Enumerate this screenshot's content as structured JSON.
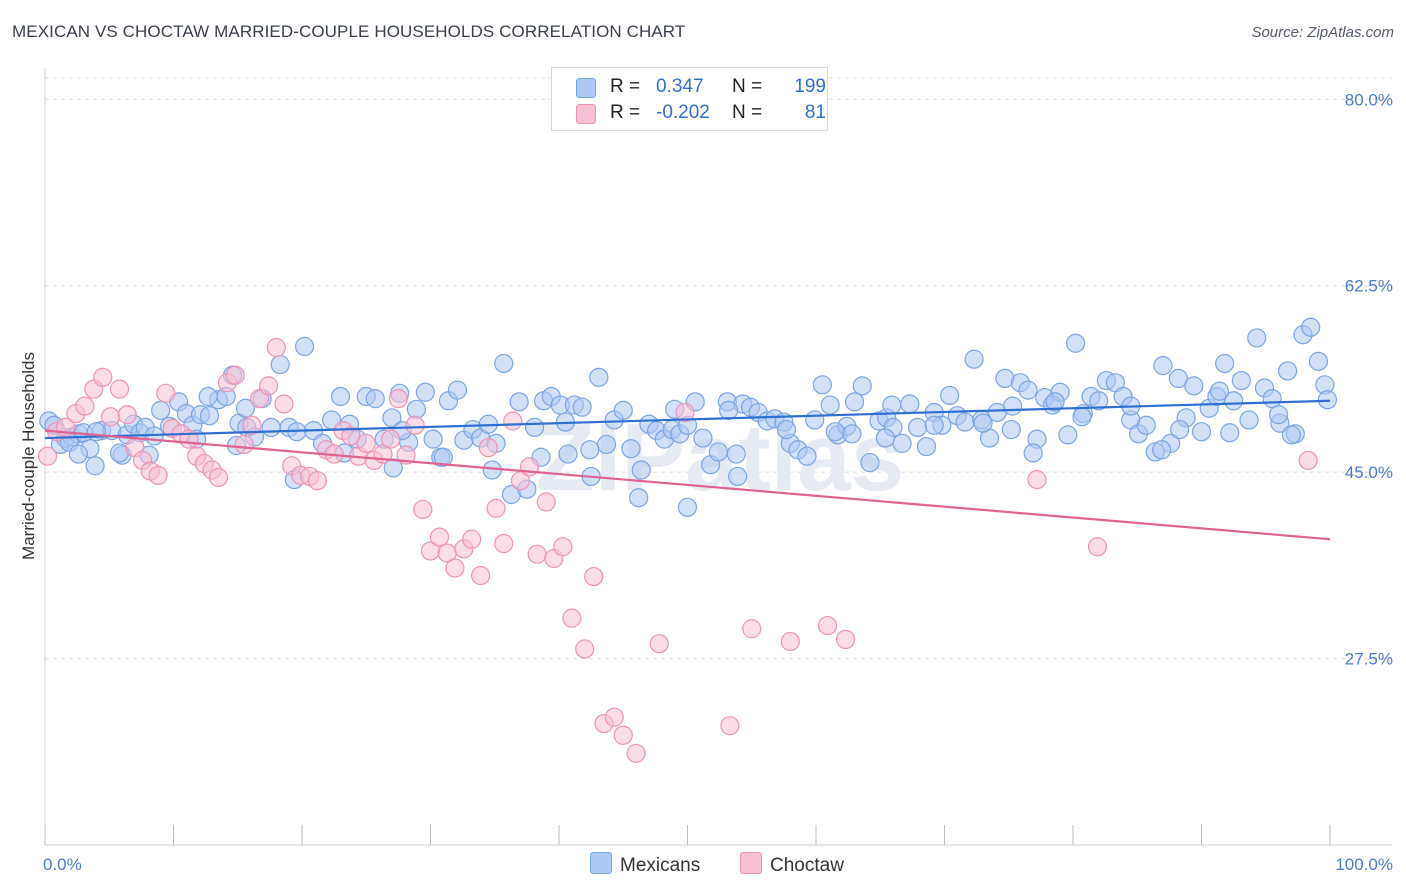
{
  "title": "MEXICAN VS CHOCTAW MARRIED-COUPLE HOUSEHOLDS CORRELATION CHART",
  "source": "Source: ZipAtlas.com",
  "watermark": "ZIPatlas",
  "legend": [
    {
      "r_label": "R =",
      "r_value": "0.347",
      "n_label": "N =",
      "n_value": "199",
      "fill": "#adc8f2",
      "stroke": "#7aa5e3"
    },
    {
      "r_label": "R =",
      "r_value": "-0.202",
      "n_label": "N =",
      "n_value": "81",
      "fill": "#f7bfd3",
      "stroke": "#ee93b4"
    }
  ],
  "bottom_legend": [
    {
      "label": "Mexicans",
      "fill": "#adc8f2",
      "stroke": "#7aa5e3"
    },
    {
      "label": "Choctaw",
      "fill": "#f7bfd3",
      "stroke": "#ee93b4"
    }
  ],
  "chart_data": {
    "type": "scatter",
    "ylabel": "Married-couple Households",
    "xlim": [
      0,
      100
    ],
    "ylim": [
      10,
      82
    ],
    "y_ticks": [
      {
        "value": 80,
        "label": "80.0%"
      },
      {
        "value": 62.5,
        "label": "62.5%"
      },
      {
        "value": 45,
        "label": "45.0%"
      },
      {
        "value": 27.5,
        "label": "27.5%"
      }
    ],
    "x_tick_labels": [
      {
        "value": 0,
        "label": "0.0%"
      },
      {
        "value": 100,
        "label": "100.0%"
      }
    ],
    "series": [
      {
        "name": "Mexicans",
        "color": "#adc8f2",
        "stroke": "#7aa5e3",
        "trend": {
          "x0": 0,
          "y0": 48.2,
          "x1": 100,
          "y1": 51.7,
          "color": "#2f6fd1"
        },
        "points": [
          [
            0.3,
            49.8
          ],
          [
            0.7,
            49.4
          ],
          [
            1.2,
            47.6
          ],
          [
            1.6,
            48.2
          ],
          [
            2.1,
            48.3
          ],
          [
            2.6,
            48.6
          ],
          [
            3.0,
            48.7
          ],
          [
            3.5,
            47.2
          ],
          [
            3.9,
            45.6
          ],
          [
            4.4,
            48.9
          ],
          [
            5.2,
            48.9
          ],
          [
            6.0,
            46.6
          ],
          [
            6.4,
            48.5
          ],
          [
            6.9,
            49.5
          ],
          [
            7.4,
            48.7
          ],
          [
            7.8,
            49.2
          ],
          [
            8.5,
            48.4
          ],
          [
            9.0,
            50.8
          ],
          [
            9.7,
            49.3
          ],
          [
            10.4,
            51.6
          ],
          [
            11.0,
            50.5
          ],
          [
            11.5,
            49.4
          ],
          [
            12.1,
            50.4
          ],
          [
            12.8,
            50.3
          ],
          [
            13.5,
            51.8
          ],
          [
            14.1,
            52.1
          ],
          [
            14.6,
            54.1
          ],
          [
            15.1,
            49.6
          ],
          [
            15.7,
            49.2
          ],
          [
            16.3,
            48.3
          ],
          [
            16.9,
            51.9
          ],
          [
            17.6,
            49.2
          ],
          [
            18.3,
            55.1
          ],
          [
            19.0,
            49.2
          ],
          [
            19.6,
            48.8
          ],
          [
            20.2,
            56.8
          ],
          [
            20.9,
            48.9
          ],
          [
            21.6,
            47.7
          ],
          [
            22.3,
            49.9
          ],
          [
            23.0,
            52.1
          ],
          [
            23.7,
            49.5
          ],
          [
            24.3,
            48.1
          ],
          [
            25.0,
            52.1
          ],
          [
            25.7,
            51.9
          ],
          [
            26.4,
            48.1
          ],
          [
            27.0,
            50.1
          ],
          [
            27.6,
            52.4
          ],
          [
            28.3,
            47.8
          ],
          [
            28.9,
            50.9
          ],
          [
            29.6,
            52.5
          ],
          [
            30.2,
            48.1
          ],
          [
            30.8,
            46.4
          ],
          [
            31.4,
            51.7
          ],
          [
            32.1,
            52.7
          ],
          [
            32.6,
            48.0
          ],
          [
            33.3,
            49.0
          ],
          [
            33.9,
            48.2
          ],
          [
            34.5,
            49.5
          ],
          [
            35.1,
            47.7
          ],
          [
            35.7,
            55.2
          ],
          [
            36.3,
            42.9
          ],
          [
            36.9,
            51.6
          ],
          [
            37.5,
            43.4
          ],
          [
            38.1,
            49.2
          ],
          [
            38.8,
            51.7
          ],
          [
            39.4,
            52.1
          ],
          [
            40.1,
            51.3
          ],
          [
            40.7,
            46.7
          ],
          [
            41.2,
            51.3
          ],
          [
            41.8,
            51.1
          ],
          [
            42.5,
            44.6
          ],
          [
            43.1,
            53.9
          ],
          [
            43.7,
            47.6
          ],
          [
            44.3,
            49.9
          ],
          [
            45.0,
            50.8
          ],
          [
            45.6,
            47.2
          ],
          [
            46.4,
            45.2
          ],
          [
            47.0,
            49.5
          ],
          [
            47.6,
            48.9
          ],
          [
            48.2,
            48.1
          ],
          [
            48.8,
            49.0
          ],
          [
            49.4,
            48.6
          ],
          [
            50.0,
            49.4
          ],
          [
            50.6,
            51.6
          ],
          [
            51.2,
            48.2
          ],
          [
            51.8,
            45.7
          ],
          [
            52.4,
            46.9
          ],
          [
            53.1,
            51.6
          ],
          [
            53.8,
            46.7
          ],
          [
            54.3,
            51.4
          ],
          [
            54.9,
            51.1
          ],
          [
            55.5,
            50.6
          ],
          [
            56.2,
            49.8
          ],
          [
            56.8,
            50.0
          ],
          [
            57.5,
            49.7
          ],
          [
            58.0,
            47.7
          ],
          [
            58.6,
            47.1
          ],
          [
            59.3,
            46.5
          ],
          [
            59.9,
            49.9
          ],
          [
            60.5,
            53.2
          ],
          [
            61.1,
            51.3
          ],
          [
            61.7,
            48.5
          ],
          [
            62.4,
            49.3
          ],
          [
            63.0,
            51.6
          ],
          [
            63.6,
            53.1
          ],
          [
            64.2,
            45.9
          ],
          [
            64.9,
            49.8
          ],
          [
            65.5,
            50.1
          ],
          [
            66.0,
            49.2
          ],
          [
            66.7,
            47.7
          ],
          [
            67.3,
            51.4
          ],
          [
            67.9,
            49.2
          ],
          [
            68.6,
            47.4
          ],
          [
            69.2,
            50.6
          ],
          [
            69.8,
            49.4
          ],
          [
            70.4,
            52.2
          ],
          [
            71.0,
            50.3
          ],
          [
            71.6,
            49.7
          ],
          [
            72.3,
            55.6
          ],
          [
            72.9,
            49.9
          ],
          [
            73.5,
            48.2
          ],
          [
            74.1,
            50.6
          ],
          [
            74.7,
            53.8
          ],
          [
            75.3,
            51.2
          ],
          [
            75.9,
            53.4
          ],
          [
            76.5,
            52.7
          ],
          [
            77.2,
            48.1
          ],
          [
            77.8,
            52.0
          ],
          [
            78.4,
            51.3
          ],
          [
            79.0,
            52.5
          ],
          [
            79.6,
            48.5
          ],
          [
            80.2,
            57.1
          ],
          [
            80.8,
            50.5
          ],
          [
            81.4,
            52.1
          ],
          [
            82.0,
            51.7
          ],
          [
            82.6,
            53.6
          ],
          [
            83.3,
            53.4
          ],
          [
            83.9,
            52.1
          ],
          [
            84.5,
            49.9
          ],
          [
            85.1,
            48.6
          ],
          [
            85.7,
            49.4
          ],
          [
            86.4,
            46.9
          ],
          [
            87.0,
            55.0
          ],
          [
            87.6,
            47.7
          ],
          [
            88.2,
            53.8
          ],
          [
            88.8,
            50.1
          ],
          [
            89.4,
            53.1
          ],
          [
            90.0,
            48.8
          ],
          [
            90.6,
            51.0
          ],
          [
            91.2,
            52.1
          ],
          [
            91.8,
            55.2
          ],
          [
            92.5,
            51.7
          ],
          [
            93.1,
            53.6
          ],
          [
            93.7,
            49.9
          ],
          [
            94.3,
            57.6
          ],
          [
            94.9,
            52.9
          ],
          [
            95.5,
            51.9
          ],
          [
            96.1,
            49.6
          ],
          [
            96.7,
            54.5
          ],
          [
            97.3,
            48.6
          ],
          [
            97.9,
            57.9
          ],
          [
            98.5,
            58.6
          ],
          [
            99.1,
            55.4
          ],
          [
            99.6,
            53.2
          ],
          [
            1.9,
            47.8
          ],
          [
            4.0,
            48.8
          ],
          [
            5.8,
            46.8
          ],
          [
            8.1,
            46.6
          ],
          [
            11.8,
            48.1
          ],
          [
            15.6,
            51.0
          ],
          [
            19.4,
            44.3
          ],
          [
            23.3,
            46.8
          ],
          [
            27.1,
            45.4
          ],
          [
            31.0,
            46.4
          ],
          [
            34.8,
            45.2
          ],
          [
            38.6,
            46.4
          ],
          [
            42.4,
            47.1
          ],
          [
            46.2,
            42.6
          ],
          [
            50.0,
            41.7
          ],
          [
            53.9,
            44.6
          ],
          [
            57.7,
            49.0
          ],
          [
            61.5,
            48.8
          ],
          [
            65.4,
            48.2
          ],
          [
            69.2,
            49.4
          ],
          [
            73.0,
            49.6
          ],
          [
            76.9,
            46.8
          ],
          [
            80.7,
            50.2
          ],
          [
            84.5,
            51.2
          ],
          [
            88.3,
            49.0
          ],
          [
            92.2,
            48.7
          ],
          [
            96.0,
            50.4
          ],
          [
            99.8,
            51.8
          ],
          [
            2.6,
            46.7
          ],
          [
            14.9,
            47.5
          ],
          [
            27.8,
            48.9
          ],
          [
            40.5,
            49.7
          ],
          [
            53.2,
            50.8
          ],
          [
            65.9,
            51.3
          ],
          [
            78.6,
            51.6
          ],
          [
            91.4,
            52.6
          ],
          [
            12.7,
            52.1
          ],
          [
            49.0,
            50.9
          ],
          [
            62.8,
            48.6
          ],
          [
            75.2,
            49.0
          ],
          [
            86.9,
            47.1
          ],
          [
            97.0,
            48.5
          ]
        ]
      },
      {
        "name": "Choctaw",
        "color": "#f7bfd3",
        "stroke": "#ee93b4",
        "trend": {
          "x0": 0,
          "y0": 48.9,
          "x1": 100,
          "y1": 38.7
        },
        "points": [
          [
            0.2,
            46.5
          ],
          [
            0.9,
            48.8
          ],
          [
            1.6,
            49.2
          ],
          [
            2.4,
            50.5
          ],
          [
            3.1,
            51.2
          ],
          [
            3.8,
            52.8
          ],
          [
            4.5,
            53.9
          ],
          [
            5.1,
            50.2
          ],
          [
            5.8,
            52.8
          ],
          [
            6.4,
            50.4
          ],
          [
            7.0,
            47.3
          ],
          [
            7.6,
            46.1
          ],
          [
            8.2,
            45.1
          ],
          [
            8.8,
            44.7
          ],
          [
            9.4,
            52.4
          ],
          [
            9.9,
            49.1
          ],
          [
            10.6,
            48.6
          ],
          [
            11.2,
            48.1
          ],
          [
            11.8,
            46.5
          ],
          [
            12.4,
            45.8
          ],
          [
            13.0,
            45.2
          ],
          [
            13.5,
            44.5
          ],
          [
            14.2,
            53.4
          ],
          [
            14.8,
            54.1
          ],
          [
            15.5,
            47.6
          ],
          [
            16.1,
            49.4
          ],
          [
            16.7,
            51.9
          ],
          [
            17.4,
            53.1
          ],
          [
            18.0,
            56.7
          ],
          [
            18.6,
            51.4
          ],
          [
            19.2,
            45.6
          ],
          [
            19.9,
            44.7
          ],
          [
            20.6,
            44.6
          ],
          [
            21.2,
            44.2
          ],
          [
            21.9,
            47.1
          ],
          [
            22.5,
            46.7
          ],
          [
            23.2,
            48.9
          ],
          [
            23.8,
            48.4
          ],
          [
            24.4,
            46.5
          ],
          [
            25.0,
            47.7
          ],
          [
            25.6,
            46.1
          ],
          [
            26.3,
            46.7
          ],
          [
            26.9,
            48.1
          ],
          [
            27.5,
            51.9
          ],
          [
            28.1,
            46.6
          ],
          [
            28.8,
            49.4
          ],
          [
            29.4,
            41.5
          ],
          [
            30.0,
            37.6
          ],
          [
            30.7,
            38.9
          ],
          [
            31.3,
            37.4
          ],
          [
            31.9,
            36.0
          ],
          [
            32.6,
            37.8
          ],
          [
            33.2,
            38.7
          ],
          [
            33.9,
            35.3
          ],
          [
            34.5,
            47.3
          ],
          [
            35.1,
            41.6
          ],
          [
            35.7,
            38.3
          ],
          [
            36.4,
            49.8
          ],
          [
            37.0,
            44.2
          ],
          [
            37.7,
            45.5
          ],
          [
            38.3,
            37.3
          ],
          [
            39.0,
            42.2
          ],
          [
            39.6,
            36.9
          ],
          [
            40.3,
            38.0
          ],
          [
            41.0,
            31.3
          ],
          [
            42.0,
            28.4
          ],
          [
            42.7,
            35.2
          ],
          [
            43.5,
            21.4
          ],
          [
            44.3,
            22.0
          ],
          [
            45.0,
            20.3
          ],
          [
            46.0,
            18.6
          ],
          [
            47.8,
            28.9
          ],
          [
            49.8,
            50.6
          ],
          [
            53.3,
            21.2
          ],
          [
            55.0,
            30.3
          ],
          [
            58.0,
            29.1
          ],
          [
            60.9,
            30.6
          ],
          [
            62.3,
            29.3
          ],
          [
            77.2,
            44.3
          ],
          [
            81.9,
            38.0
          ],
          [
            98.3,
            46.1
          ]
        ]
      }
    ]
  }
}
